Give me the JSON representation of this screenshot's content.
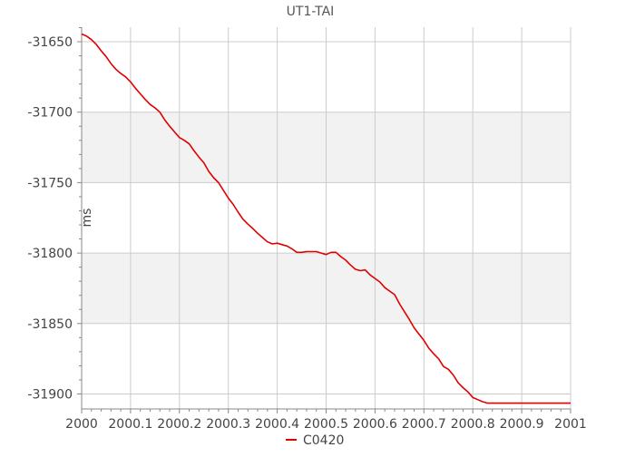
{
  "chart_data": {
    "type": "line",
    "title": "UT1-TAI",
    "xlabel": "",
    "ylabel": "ms",
    "xlim": [
      2000,
      2001
    ],
    "ylim": [
      -31910,
      -31640
    ],
    "x_ticks": [
      2000,
      2000.1,
      2000.2,
      2000.3,
      2000.4,
      2000.5,
      2000.6,
      2000.7,
      2000.8,
      2000.9,
      2001
    ],
    "x_tick_labels": [
      "2000",
      "2000.1",
      "2000.2",
      "2000.3",
      "2000.4",
      "2000.5",
      "2000.6",
      "2000.7",
      "2000.8",
      "2000.9",
      "2001"
    ],
    "y_ticks": [
      -31650,
      -31700,
      -31750,
      -31800,
      -31850,
      -31900
    ],
    "y_tick_labels": [
      "-31650",
      "-31700",
      "-31750",
      "-31800",
      "-31850",
      "-31900"
    ],
    "grid": true,
    "alternating_bands": [
      [
        -31750,
        -31700
      ],
      [
        -31850,
        -31800
      ]
    ],
    "band_color": "#f2f2f2",
    "grid_color": "#cccccc",
    "legend_position": "bottom-center",
    "series": [
      {
        "name": "C0420",
        "color": "#e00000",
        "x": [
          2000,
          2000.01,
          2000.02,
          2000.03,
          2000.04,
          2000.05,
          2000.06,
          2000.07,
          2000.08,
          2000.09,
          2000.1,
          2000.11,
          2000.12,
          2000.13,
          2000.14,
          2000.15,
          2000.16,
          2000.17,
          2000.18,
          2000.19,
          2000.2,
          2000.21,
          2000.22,
          2000.23,
          2000.24,
          2000.25,
          2000.26,
          2000.27,
          2000.28,
          2000.29,
          2000.3,
          2000.31,
          2000.32,
          2000.33,
          2000.34,
          2000.35,
          2000.36,
          2000.37,
          2000.38,
          2000.39,
          2000.4,
          2000.41,
          2000.42,
          2000.43,
          2000.44,
          2000.45,
          2000.46,
          2000.47,
          2000.48,
          2000.49,
          2000.5,
          2000.51,
          2000.52,
          2000.53,
          2000.54,
          2000.55,
          2000.56,
          2000.57,
          2000.58,
          2000.59,
          2000.6,
          2000.61,
          2000.62,
          2000.63,
          2000.64,
          2000.65,
          2000.66,
          2000.67,
          2000.68,
          2000.69,
          2000.7,
          2000.71,
          2000.72,
          2000.73,
          2000.74,
          2000.75,
          2000.76,
          2000.77,
          2000.78,
          2000.79,
          2000.8,
          2000.81,
          2000.82,
          2000.83,
          2000.84,
          2000.85,
          2000.86,
          2000.87,
          2000.88,
          2000.89,
          2000.9,
          2000.91,
          2000.92,
          2000.93,
          2000.94,
          2000.95,
          2000.96,
          2000.97,
          2000.98,
          2000.99,
          2001
        ],
        "y": [
          -31644.5,
          -31646.0,
          -31648.5,
          -31652.0,
          -31656.5,
          -31660.5,
          -31665.5,
          -31669.5,
          -31672.5,
          -31675.0,
          -31678.5,
          -31683.0,
          -31687.0,
          -31691.0,
          -31694.5,
          -31697.0,
          -31700.0,
          -31705.5,
          -31710.0,
          -31714.0,
          -31718.0,
          -31720.0,
          -31722.5,
          -31727.5,
          -31732.0,
          -31736.0,
          -31742.0,
          -31746.5,
          -31750.0,
          -31755.5,
          -31761.0,
          -31765.5,
          -31771.0,
          -31776.0,
          -31779.5,
          -31782.5,
          -31786.0,
          -31789.0,
          -31792.0,
          -31793.5,
          -31793.0,
          -31794.0,
          -31795.0,
          -31797.0,
          -31799.5,
          -31799.5,
          -31799.0,
          -31799.0,
          -31799.0,
          -31800.0,
          -31801.0,
          -31799.5,
          -31799.5,
          -31802.5,
          -31805.0,
          -31808.5,
          -31811.5,
          -31812.5,
          -31812.0,
          -31815.5,
          -31818.0,
          -31820.5,
          -31824.5,
          -31827.0,
          -31829.5,
          -31836.0,
          -31841.5,
          -31847.0,
          -31853.0,
          -31857.5,
          -31862.0,
          -31867.5,
          -31871.5,
          -31875.0,
          -31880.5,
          -31882.5,
          -31886.5,
          -31892.0,
          -31895.5,
          -31898.5,
          -31902.5,
          -31904.0,
          -31905.5,
          -31906.5,
          -31906.5,
          -31906.5,
          -31906.5,
          -31906.5,
          -31906.5,
          -31906.5,
          -31906.5,
          -31906.5,
          -31906.5,
          -31906.5,
          -31906.5,
          -31906.5,
          -31906.5,
          -31906.5,
          -31906.5,
          -31906.5,
          -31906.5
        ]
      }
    ]
  }
}
